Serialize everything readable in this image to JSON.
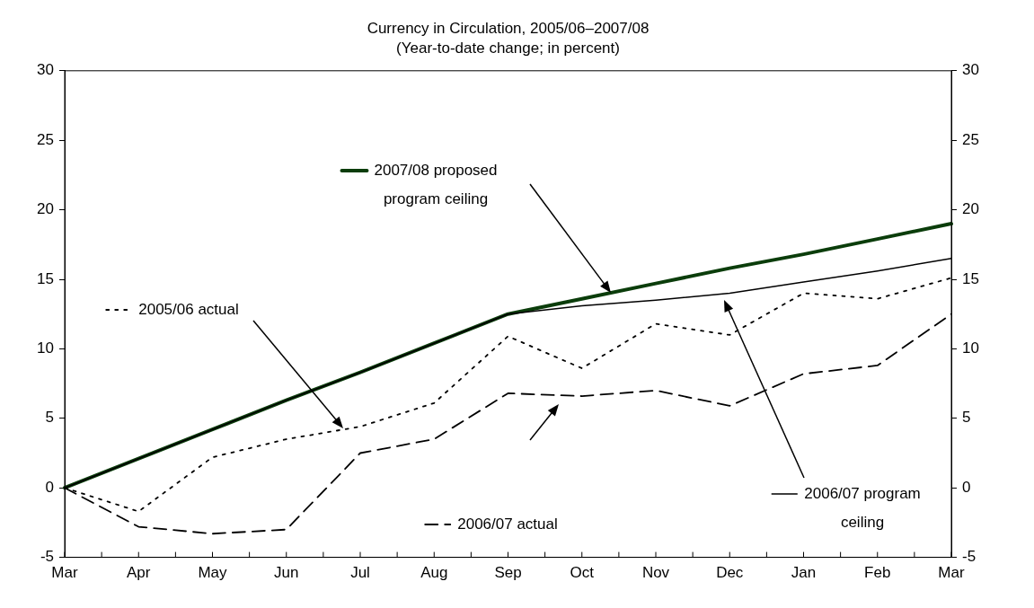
{
  "chart_data": {
    "type": "line",
    "title": "Currency in Circulation, 2005/06–2007/08",
    "subtitle": "(Year-to-date change; in percent)",
    "categories": [
      "Mar",
      "Apr",
      "May",
      "Jun",
      "Jul",
      "Aug",
      "Sep",
      "Oct",
      "Nov",
      "Dec",
      "Jan",
      "Feb",
      "Mar"
    ],
    "series": [
      {
        "name": "2007/08 proposed program ceiling",
        "color": "#0b3d0b",
        "line_style": "solid",
        "values": [
          0,
          2.1,
          4.2,
          6.3,
          8.3,
          10.4,
          12.5,
          13.6,
          14.7,
          15.8,
          16.8,
          17.9,
          19.0
        ]
      },
      {
        "name": "2006/07 program ceiling",
        "color": "#000000",
        "line_style": "solid",
        "values": [
          0,
          2.1,
          4.2,
          6.3,
          8.3,
          10.4,
          12.5,
          13.1,
          13.5,
          14.0,
          14.8,
          15.6,
          16.5
        ]
      },
      {
        "name": "2005/06 actual",
        "color": "#000000",
        "line_style": "dotted",
        "values": [
          0,
          -1.7,
          2.2,
          3.5,
          4.4,
          6.1,
          10.9,
          8.6,
          11.8,
          11.0,
          14.0,
          13.6,
          15.1
        ]
      },
      {
        "name": "2006/07 actual",
        "color": "#000000",
        "line_style": "dashed",
        "values": [
          0,
          -2.8,
          -3.3,
          -3.0,
          2.5,
          3.5,
          6.8,
          6.6,
          7.0,
          5.9,
          8.2,
          8.8,
          12.5
        ]
      }
    ],
    "ylim": [
      -5,
      30
    ],
    "yticks": [
      -5,
      0,
      5,
      10,
      15,
      20,
      25,
      30
    ],
    "y2lim": [
      -5,
      30
    ],
    "y2ticks": [
      -5,
      0,
      5,
      10,
      15,
      20,
      25,
      30
    ],
    "grid": false,
    "legend": "bottom right",
    "marker": "none"
  }
}
